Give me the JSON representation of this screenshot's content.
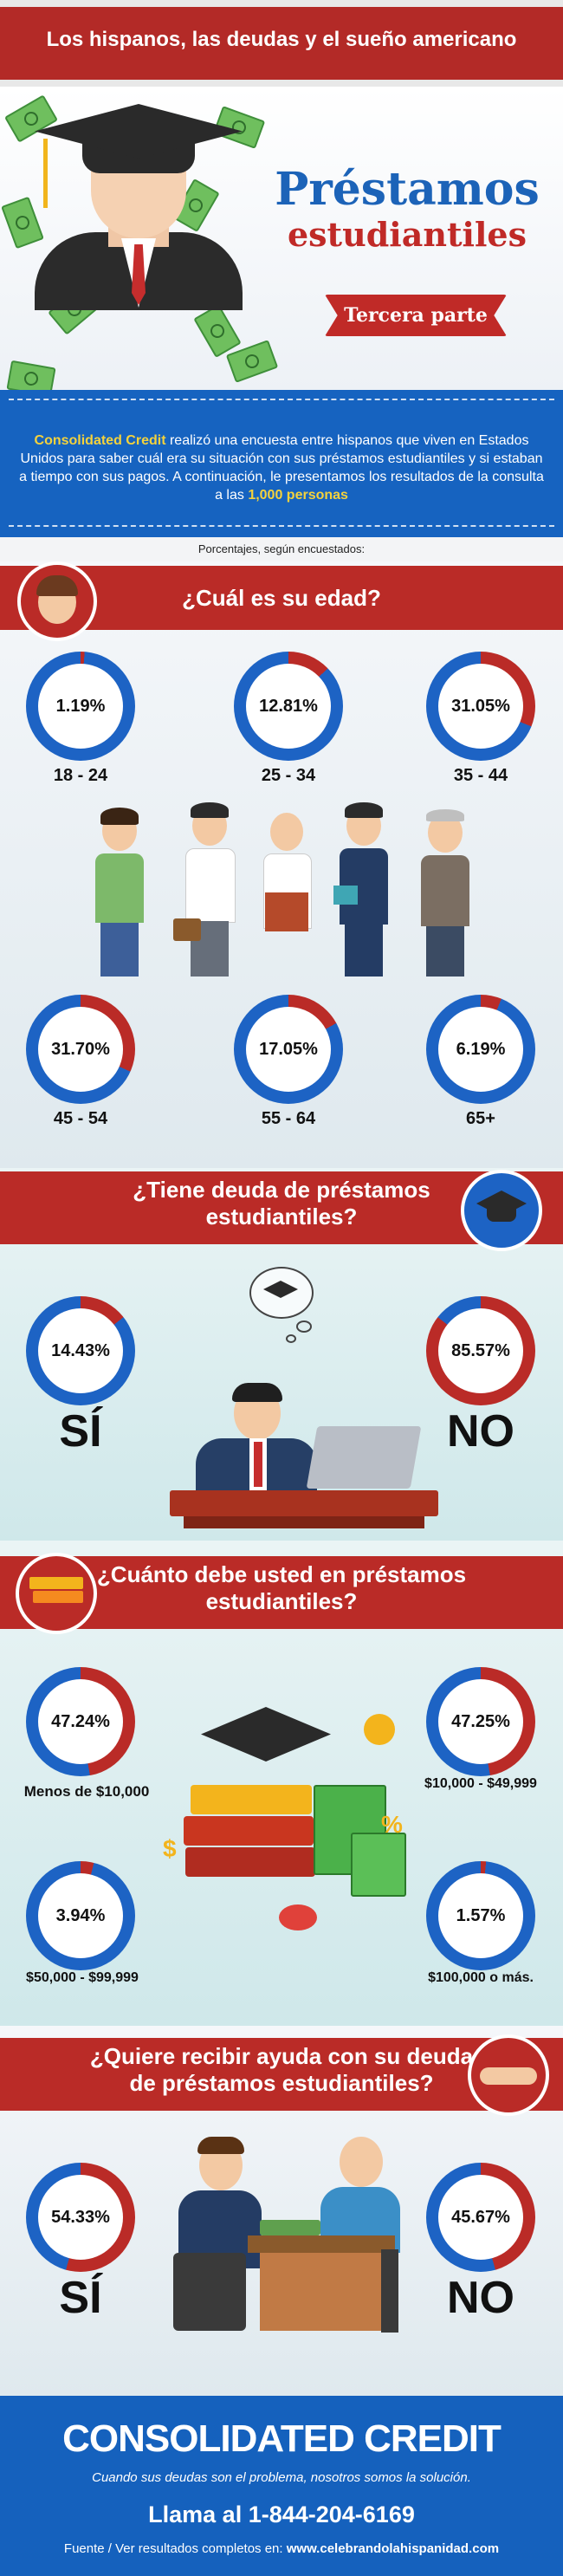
{
  "header": {
    "title": "Los hispanos, las deudas y el sueño americano"
  },
  "hero": {
    "title_line1": "Préstamos",
    "title_line2": "estudiantiles",
    "ribbon": "Tercera parte"
  },
  "intro": {
    "brand": "Consolidated Credit",
    "text_part1": " realizó una encuesta entre hispanos que viven en Estados Unidos para saber cuál era su situación con sus préstamos estudiantiles y si estaban a tiempo con sus pagos. A continuación, le presentamos  los resultados de la consulta a las ",
    "highlight": "1,000 personas"
  },
  "survey_note": "Porcentajes, según encuestados:",
  "colors": {
    "red": "#ba2b27",
    "blue": "#1d63c4",
    "navy": "#1561bd",
    "yellow": "#f4d23c"
  },
  "section_age": {
    "title": "¿Cuál es su edad?",
    "items": [
      {
        "pct": "1.19%",
        "label": "18 - 24",
        "value": 1.19
      },
      {
        "pct": "12.81%",
        "label": "25 - 34",
        "value": 12.81
      },
      {
        "pct": "31.05%",
        "label": "35 - 44",
        "value": 31.05
      },
      {
        "pct": "31.70%",
        "label": "45 - 54",
        "value": 31.7
      },
      {
        "pct": "17.05%",
        "label": "55 - 64",
        "value": 17.05
      },
      {
        "pct": "6.19%",
        "label": "65+",
        "value": 6.19
      }
    ]
  },
  "section_debt": {
    "title_line1": "¿Tiene deuda de préstamos",
    "title_line2": "estudiantiles?",
    "items": [
      {
        "pct": "14.43%",
        "label": "SÍ",
        "value": 14.43
      },
      {
        "pct": "85.57%",
        "label": "NO",
        "value": 85.57
      }
    ]
  },
  "section_amount": {
    "title_line1": "¿Cuánto debe usted en préstamos",
    "title_line2": "estudiantiles?",
    "items": [
      {
        "pct": "47.24%",
        "label": "Menos de $10,000",
        "value": 47.24
      },
      {
        "pct": "47.25%",
        "label": "$10,000 - $49,999",
        "value": 47.25
      },
      {
        "pct": "3.94%",
        "label": "$50,000 - $99,999",
        "value": 3.94
      },
      {
        "pct": "1.57%",
        "label": "$100,000 o más.",
        "value": 1.57
      }
    ]
  },
  "section_help": {
    "title_line1": "¿Quiere recibir ayuda con su deuda",
    "title_line2": "de préstamos estudiantiles?",
    "items": [
      {
        "pct": "54.33%",
        "label": "SÍ",
        "value": 54.33
      },
      {
        "pct": "45.67%",
        "label": "NO",
        "value": 45.67
      }
    ]
  },
  "footer": {
    "logo": "CONSOLIDATED CREDIT",
    "tagline": "Cuando sus deudas son el problema, nosotros somos la solución.",
    "phone": "Llama al 1-844-204-6169",
    "source_prefix": "Fuente / Ver resultados completos en: ",
    "source_link": "www.celebrandolahispanidad.com"
  }
}
